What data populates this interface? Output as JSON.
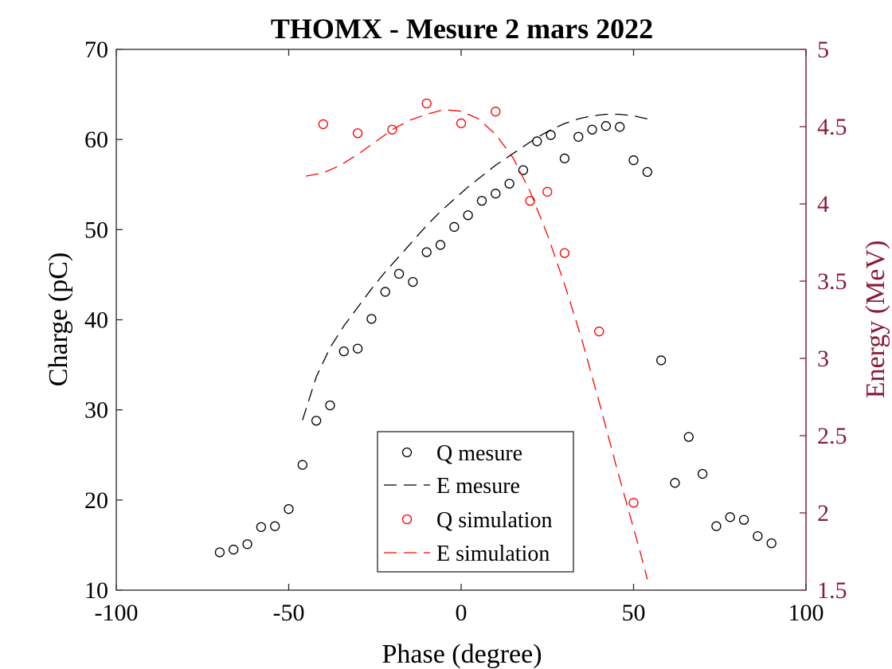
{
  "chart_data": {
    "type": "scatter",
    "title": "THOMX - Mesure 2 mars 2022",
    "xlabel": "Phase (degree)",
    "ylabel_left": "Charge (pC)",
    "ylabel_right": "Energy (MeV)",
    "xlim": [
      -100,
      100
    ],
    "ylim_left": [
      10,
      70
    ],
    "ylim_right": [
      1.5,
      5
    ],
    "x_ticks": [
      "-100",
      "-50",
      "0",
      "50",
      "100"
    ],
    "y_left_ticks": [
      "10",
      "20",
      "30",
      "40",
      "50",
      "60",
      "70"
    ],
    "y_right_ticks": [
      "1.5",
      "2",
      "2.5",
      "3",
      "3.5",
      "4",
      "4.5",
      "5"
    ],
    "grid": false,
    "legend_placement": "bottom-center",
    "colors": {
      "black": "#000000",
      "red": "#ff0000",
      "right_axis": "#8b1a35"
    },
    "series": [
      {
        "name": "Q mesure",
        "kind": "markers",
        "axis": "left",
        "color": "#000000",
        "x": [
          -70,
          -66,
          -62,
          -58,
          -54,
          -50,
          -46,
          -42,
          -38,
          -34,
          -30,
          -26,
          -22,
          -18,
          -14,
          -10,
          -6,
          -2,
          2,
          6,
          10,
          14,
          18,
          22,
          26,
          30,
          34,
          38,
          42,
          46,
          50,
          54,
          58,
          62,
          66,
          70,
          74,
          78,
          82,
          86,
          90
        ],
        "y": [
          14.2,
          14.5,
          15.1,
          17.0,
          17.1,
          19.0,
          23.9,
          28.8,
          30.5,
          36.5,
          36.8,
          40.1,
          43.1,
          45.1,
          44.2,
          47.5,
          48.3,
          50.3,
          51.6,
          53.2,
          54.0,
          55.1,
          56.6,
          59.8,
          60.5,
          57.9,
          60.3,
          61.1,
          61.5,
          61.4,
          57.7,
          56.4,
          35.5,
          21.9,
          27.0,
          22.9,
          17.1,
          18.1,
          17.8,
          16.0,
          15.2
        ]
      },
      {
        "name": "E mesure",
        "kind": "dashed-line",
        "axis": "right",
        "color": "#000000",
        "x": [
          -46,
          -42,
          -38,
          -34,
          -30,
          -26,
          -22,
          -18,
          -14,
          -10,
          -6,
          -2,
          2,
          6,
          10,
          14,
          18,
          22,
          26,
          30,
          34,
          38,
          42,
          46,
          50,
          52,
          54
        ],
        "y": [
          2.6,
          2.88,
          3.07,
          3.21,
          3.33,
          3.45,
          3.56,
          3.66,
          3.76,
          3.86,
          3.95,
          4.03,
          4.11,
          4.18,
          4.25,
          4.31,
          4.37,
          4.43,
          4.48,
          4.52,
          4.55,
          4.57,
          4.58,
          4.58,
          4.57,
          4.56,
          4.55
        ]
      },
      {
        "name": "Q simulation",
        "kind": "markers",
        "axis": "left",
        "color": "#ff0000",
        "x": [
          -40,
          -30,
          -20,
          -10,
          0,
          10,
          20,
          25,
          30,
          40,
          50
        ],
        "y": [
          61.7,
          60.7,
          61.1,
          64.0,
          61.8,
          63.1,
          53.2,
          54.2,
          47.4,
          38.7,
          19.7
        ]
      },
      {
        "name": "E simulation",
        "kind": "dashed-line",
        "axis": "right",
        "color": "#ff0000",
        "x": [
          -45,
          -40,
          -35,
          -30,
          -25,
          -20,
          -15,
          -10,
          -5,
          0,
          5,
          10,
          15,
          20,
          25,
          30,
          35,
          40,
          45,
          50,
          52,
          54
        ],
        "y": [
          4.18,
          4.2,
          4.25,
          4.32,
          4.4,
          4.48,
          4.54,
          4.58,
          4.61,
          4.6,
          4.55,
          4.45,
          4.3,
          4.08,
          3.8,
          3.48,
          3.12,
          2.72,
          2.3,
          1.9,
          1.74,
          1.57
        ]
      }
    ]
  }
}
